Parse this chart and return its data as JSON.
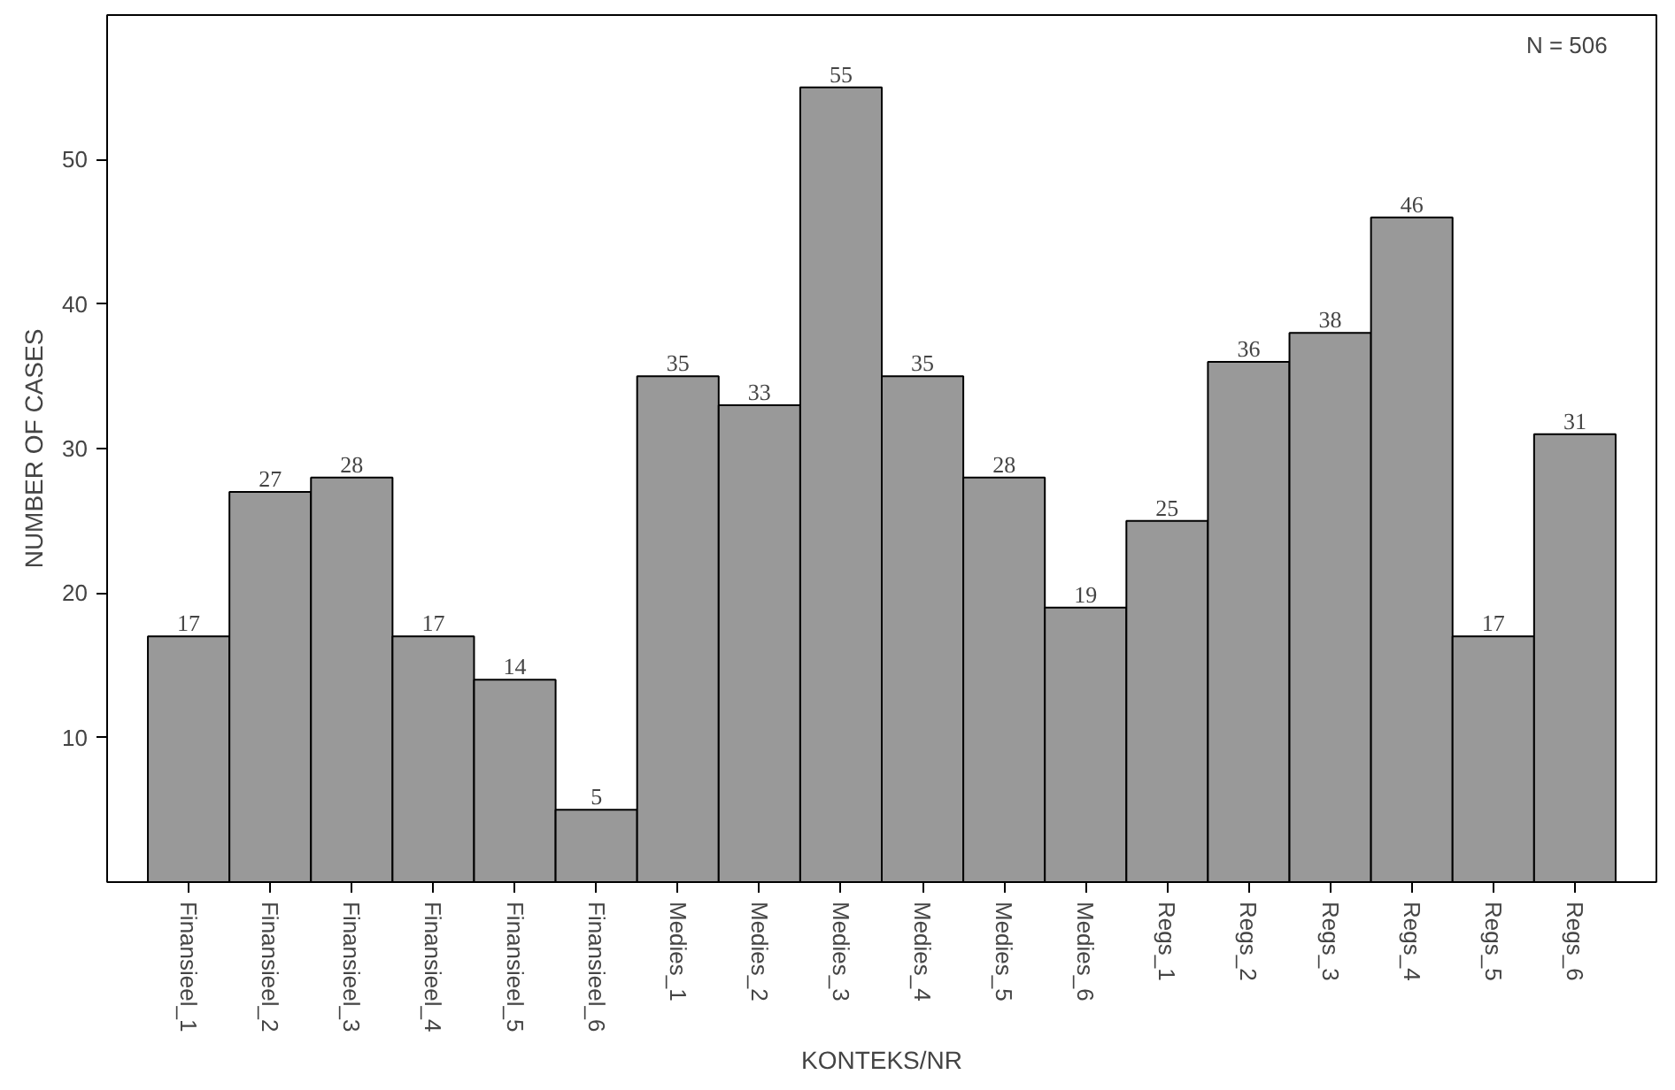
{
  "chart_data": {
    "type": "bar",
    "xlabel": "KONTEKS/NR",
    "ylabel": "NUMBER OF CASES",
    "categories": [
      "Finansieel_1",
      "Finansieel_2",
      "Finansieel_3",
      "Finansieel_4",
      "Finansieel_5",
      "Finansieel_6",
      "Medies_1",
      "Medies_2",
      "Medies_3",
      "Medies_4",
      "Medies_5",
      "Medies_6",
      "Regs_1",
      "Regs_2",
      "Regs_3",
      "Regs_4",
      "Regs_5",
      "Regs_6"
    ],
    "values": [
      17,
      27,
      28,
      17,
      14,
      5,
      35,
      33,
      55,
      35,
      28,
      19,
      25,
      36,
      38,
      46,
      17,
      31
    ],
    "color": "#999999",
    "data_labels": true,
    "ylim": [
      0,
      60
    ],
    "yticks": [
      10,
      20,
      30,
      40,
      50
    ],
    "grid": false,
    "annotations": [
      "N = 506"
    ]
  }
}
